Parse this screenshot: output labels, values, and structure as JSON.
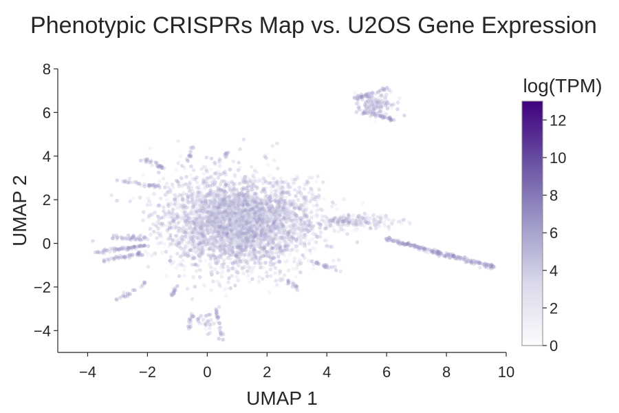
{
  "chart_data": {
    "type": "scatter",
    "title": "Phenotypic CRISPRs Map vs. U2OS Gene Expression",
    "xlabel": "UMAP 1",
    "ylabel": "UMAP 2",
    "xlim": [
      -5,
      10
    ],
    "ylim": [
      -5,
      8
    ],
    "x_ticks": [
      -4,
      -2,
      0,
      2,
      4,
      6,
      8,
      10
    ],
    "y_ticks": [
      -4,
      -2,
      0,
      2,
      4,
      6,
      8
    ],
    "colorbar": {
      "label": "log(TPM)",
      "range": [
        0,
        13
      ],
      "ticks": [
        0,
        2,
        4,
        6,
        8,
        10,
        12
      ],
      "colormap": "Purples",
      "color_low": "#fcfbfd",
      "color_high": "#3f007d"
    },
    "grid": false,
    "clusters": [
      {
        "cx": 0.8,
        "cy": 1.0,
        "sx": 1.15,
        "sy": 1.05,
        "n": 2600
      },
      {
        "cx": 1.8,
        "cy": 0.8,
        "sx": 1.1,
        "sy": 0.9,
        "n": 900
      },
      {
        "cx": 5.6,
        "cy": 6.4,
        "sx": 0.35,
        "sy": 0.25,
        "n": 140
      },
      {
        "cx": 5.0,
        "cy": 1.0,
        "sx": 0.6,
        "sy": 0.15,
        "n": 160
      },
      {
        "cx": 0.0,
        "cy": -3.6,
        "sx": 0.15,
        "sy": 0.2,
        "n": 30
      }
    ],
    "streaks": [
      {
        "x0": 6.0,
        "y0": 0.2,
        "x1": 9.6,
        "y1": -1.1,
        "n": 200
      },
      {
        "x0": 4.9,
        "y0": 6.6,
        "x1": 6.0,
        "y1": 7.1,
        "n": 40
      },
      {
        "x0": 5.3,
        "y0": 6.0,
        "x1": 6.2,
        "y1": 5.7,
        "n": 40
      },
      {
        "x0": -2.0,
        "y0": -0.1,
        "x1": -3.8,
        "y1": -0.4,
        "n": 60
      },
      {
        "x0": -2.0,
        "y0": -0.4,
        "x1": -3.5,
        "y1": -0.8,
        "n": 40
      },
      {
        "x0": -2.0,
        "y0": 0.2,
        "x1": -3.2,
        "y1": 0.3,
        "n": 35
      },
      {
        "x0": -1.5,
        "y0": 3.5,
        "x1": -2.3,
        "y1": 3.9,
        "n": 25
      },
      {
        "x0": -1.5,
        "y0": 2.6,
        "x1": -3.0,
        "y1": 2.9,
        "n": 30
      },
      {
        "x0": -1.0,
        "y0": -2.0,
        "x1": -1.2,
        "y1": -2.5,
        "n": 15
      },
      {
        "x0": -2.0,
        "y0": -1.8,
        "x1": -3.0,
        "y1": -2.6,
        "n": 20
      },
      {
        "x0": 0.3,
        "y0": -2.8,
        "x1": 0.5,
        "y1": -4.5,
        "n": 25
      },
      {
        "x0": -0.5,
        "y0": -3.3,
        "x1": -0.6,
        "y1": -3.9,
        "n": 15
      },
      {
        "x0": 3.4,
        "y0": -0.8,
        "x1": 4.4,
        "y1": -1.2,
        "n": 25
      },
      {
        "x0": 2.5,
        "y0": -1.6,
        "x1": 3.0,
        "y1": -2.1,
        "n": 15
      },
      {
        "x0": -0.6,
        "y0": 3.8,
        "x1": -0.5,
        "y1": 4.5,
        "n": 12
      },
      {
        "x0": 0.6,
        "y0": 4.0,
        "x1": 0.7,
        "y1": 4.3,
        "n": 10
      }
    ],
    "point_opacity": 0.3
  }
}
